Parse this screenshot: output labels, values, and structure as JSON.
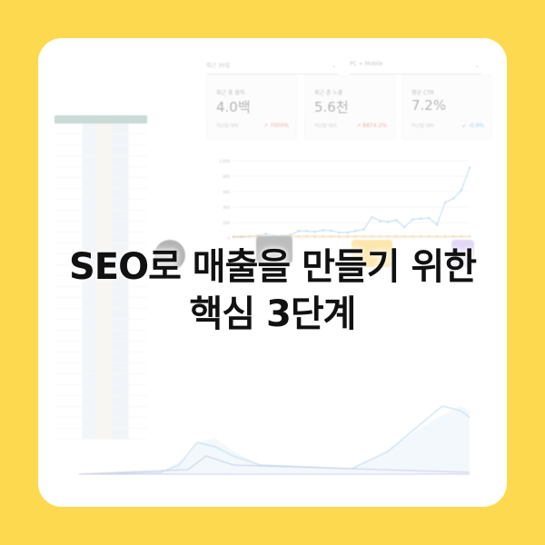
{
  "filters": {
    "period": "최근 30일",
    "device": "PC + Mobile"
  },
  "kpis": [
    {
      "label": "최근 총 클릭",
      "value": "4.0백",
      "compare": "지난달 대비",
      "change": "↗ 7000%",
      "change_color": "#e57373"
    },
    {
      "label": "최근 총 노출",
      "value": "5.6천",
      "compare": "지난달 대비",
      "change": "↗ 8874.2%",
      "change_color": "#e57373"
    },
    {
      "label": "평균 CTR",
      "value": "7.2%",
      "compare": "지난달 대비",
      "change": "↙ -0.9%",
      "change_color": "#64a8e0"
    }
  ],
  "chart_data": {
    "type": "line",
    "yticks": [
      "1,000",
      "800",
      "600",
      "400",
      "200",
      "0"
    ],
    "ylim": [
      0,
      1000
    ],
    "series": [
      {
        "values": [
          10,
          12,
          20,
          30,
          50,
          30,
          30,
          40,
          90,
          90,
          80,
          100,
          95,
          70,
          70,
          90,
          110,
          270,
          220,
          210,
          230,
          140,
          240,
          250,
          260,
          170,
          460,
          510,
          620,
          910
        ],
        "color": "#8cc0e0"
      },
      {
        "values": [
          20,
          20,
          20,
          20,
          20,
          20,
          20,
          20,
          20,
          20,
          20,
          20,
          20,
          20,
          20,
          20,
          20,
          20,
          20,
          20,
          20,
          20,
          20,
          20,
          20,
          20,
          20,
          20,
          20,
          20
        ],
        "color": "#f0b060"
      }
    ]
  },
  "title": {
    "line1": "SEO로 매출을 만들기 위한",
    "line2": "핵심 3단계"
  },
  "colors": {
    "background": "#fdd94f",
    "card": "#ffffff"
  }
}
